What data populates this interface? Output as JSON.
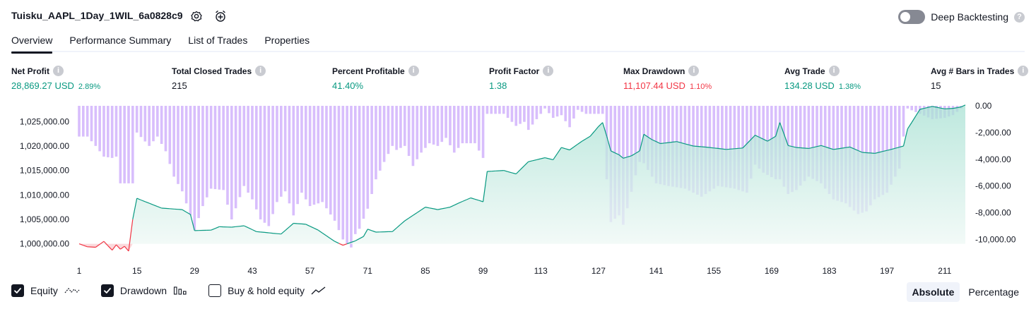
{
  "header": {
    "title": "Tuisku_AAPL_1Day_1WIL_6a0828c9",
    "settings_icon": "gear-icon",
    "alert_icon": "alarm-clock-plus-icon",
    "deep_backtesting_label": "Deep Backtesting",
    "deep_backtesting_on": false
  },
  "tabs": [
    {
      "label": "Overview",
      "active": true
    },
    {
      "label": "Performance Summary",
      "active": false
    },
    {
      "label": "List of Trades",
      "active": false
    },
    {
      "label": "Properties",
      "active": false
    }
  ],
  "metrics": [
    {
      "label": "Net Profit",
      "value": "28,869.27 USD",
      "pct": "2.89%",
      "tone": "pos"
    },
    {
      "label": "Total Closed Trades",
      "value": "215",
      "pct": "",
      "tone": "neu"
    },
    {
      "label": "Percent Profitable",
      "value": "41.40%",
      "pct": "",
      "tone": "pos"
    },
    {
      "label": "Profit Factor",
      "value": "1.38",
      "pct": "",
      "tone": "pos"
    },
    {
      "label": "Max Drawdown",
      "value": "11,107.44 USD",
      "pct": "1.10%",
      "tone": "neg"
    },
    {
      "label": "Avg Trade",
      "value": "134.28 USD",
      "pct": "1.38%",
      "tone": "pos"
    },
    {
      "label": "Avg # Bars in Trades",
      "value": "15",
      "pct": "",
      "tone": "neu"
    }
  ],
  "legend": {
    "equity_label": "Equity",
    "equity_checked": true,
    "drawdown_label": "Drawdown",
    "drawdown_checked": true,
    "buyhold_label": "Buy & hold equity",
    "buyhold_checked": false
  },
  "mode": {
    "absolute_label": "Absolute",
    "percentage_label": "Percentage",
    "active": "absolute"
  },
  "colors": {
    "equity_up": "#089981",
    "equity_down": "#f23645",
    "drawdown_bar": "#d1b3fb",
    "equity_fill_top": "#a8e1d3",
    "equity_fill_bottom": "#eef8f5",
    "loss_fill": "#fbd5d8"
  },
  "chart_data": {
    "type": "line",
    "title": "",
    "xlabel": "",
    "ylabel": "",
    "x_ticks": [
      1,
      15,
      29,
      43,
      57,
      71,
      85,
      99,
      113,
      127,
      141,
      155,
      169,
      183,
      197,
      211
    ],
    "x_range": [
      1,
      216
    ],
    "equity_axis": {
      "ticks": [
        "1,000,000.00",
        "1,005,000.00",
        "1,010,000.00",
        "1,015,000.00",
        "1,020,000.00",
        "1,025,000.00"
      ],
      "tick_values": [
        1000000,
        1005000,
        1010000,
        1015000,
        1020000,
        1025000
      ],
      "ylim": [
        998500,
        1027500
      ]
    },
    "drawdown_axis": {
      "ticks": [
        "0.00",
        "-2,000.00",
        "-4,000.00",
        "-6,000.00",
        "-8,000.00",
        "-10,000.00"
      ],
      "tick_values": [
        0,
        -2000,
        -4000,
        -6000,
        -8000,
        -10000
      ],
      "ylim": [
        -10400,
        0
      ]
    },
    "series": [
      {
        "name": "Equity",
        "anchors": [
          [
            1,
            1000000
          ],
          [
            3,
            999400
          ],
          [
            5,
            999300
          ],
          [
            7,
            1000500
          ],
          [
            9,
            998700
          ],
          [
            10,
            999800
          ],
          [
            11,
            998900
          ],
          [
            12,
            999500
          ],
          [
            13,
            998500
          ],
          [
            14,
            1005000
          ],
          [
            15,
            1009300
          ],
          [
            18,
            1008300
          ],
          [
            21,
            1007300
          ],
          [
            26,
            1007000
          ],
          [
            28,
            1006000
          ],
          [
            29,
            1002700
          ],
          [
            33,
            1002800
          ],
          [
            35,
            1003500
          ],
          [
            38,
            1003400
          ],
          [
            41,
            1003700
          ],
          [
            44,
            1002500
          ],
          [
            50,
            1002000
          ],
          [
            53,
            1004200
          ],
          [
            56,
            1004000
          ],
          [
            59,
            1002800
          ],
          [
            63,
            1000500
          ],
          [
            65,
            999700
          ],
          [
            67,
            1000300
          ],
          [
            68,
            1000600
          ],
          [
            70,
            1001500
          ],
          [
            71,
            1003000
          ],
          [
            73,
            1002400
          ],
          [
            77,
            1002500
          ],
          [
            80,
            1004700
          ],
          [
            85,
            1007500
          ],
          [
            88,
            1007000
          ],
          [
            91,
            1007500
          ],
          [
            93,
            1008300
          ],
          [
            96,
            1009400
          ],
          [
            99,
            1008600
          ],
          [
            100,
            1014800
          ],
          [
            104,
            1015000
          ],
          [
            107,
            1014300
          ],
          [
            110,
            1016800
          ],
          [
            114,
            1017600
          ],
          [
            116,
            1017200
          ],
          [
            118,
            1019700
          ],
          [
            120,
            1019200
          ],
          [
            123,
            1021000
          ],
          [
            125,
            1022000
          ],
          [
            127,
            1024000
          ],
          [
            128,
            1024800
          ],
          [
            129,
            1022000
          ],
          [
            130,
            1019000
          ],
          [
            132,
            1018200
          ],
          [
            133,
            1017500
          ],
          [
            135,
            1018000
          ],
          [
            137,
            1019000
          ],
          [
            138,
            1022400
          ],
          [
            140,
            1021300
          ],
          [
            142,
            1020500
          ],
          [
            146,
            1020900
          ],
          [
            150,
            1020000
          ],
          [
            154,
            1019700
          ],
          [
            158,
            1019300
          ],
          [
            162,
            1019600
          ],
          [
            165,
            1022200
          ],
          [
            168,
            1021000
          ],
          [
            170,
            1022000
          ],
          [
            171,
            1024800
          ],
          [
            173,
            1020100
          ],
          [
            175,
            1019700
          ],
          [
            178,
            1019500
          ],
          [
            181,
            1020100
          ],
          [
            184,
            1019300
          ],
          [
            188,
            1019800
          ],
          [
            191,
            1018700
          ],
          [
            194,
            1018500
          ],
          [
            198,
            1019300
          ],
          [
            201,
            1020000
          ],
          [
            202,
            1023500
          ],
          [
            205,
            1027500
          ],
          [
            208,
            1028100
          ],
          [
            211,
            1027600
          ],
          [
            213,
            1027700
          ],
          [
            215,
            1028000
          ],
          [
            216,
            1028400
          ]
        ]
      },
      {
        "name": "Drawdown",
        "anchors": [
          [
            1,
            -2300
          ],
          [
            3,
            -2300
          ],
          [
            5,
            -3000
          ],
          [
            7,
            -3800
          ],
          [
            9,
            -3900
          ],
          [
            10,
            -3800
          ],
          [
            11,
            -5800
          ],
          [
            14,
            -5800
          ],
          [
            15,
            -2000
          ],
          [
            18,
            -3000
          ],
          [
            20,
            -2300
          ],
          [
            22,
            -3400
          ],
          [
            24,
            -5300
          ],
          [
            26,
            -6400
          ],
          [
            28,
            -8200
          ],
          [
            29,
            -9300
          ],
          [
            31,
            -7500
          ],
          [
            33,
            -6200
          ],
          [
            36,
            -6300
          ],
          [
            38,
            -8500
          ],
          [
            41,
            -6000
          ],
          [
            43,
            -7000
          ],
          [
            45,
            -8500
          ],
          [
            47,
            -9000
          ],
          [
            49,
            -7200
          ],
          [
            51,
            -6400
          ],
          [
            53,
            -8200
          ],
          [
            55,
            -6500
          ],
          [
            57,
            -7500
          ],
          [
            60,
            -7200
          ],
          [
            63,
            -8600
          ],
          [
            65,
            -10000
          ],
          [
            67,
            -10600
          ],
          [
            68,
            -9600
          ],
          [
            69,
            -9200
          ],
          [
            71,
            -7700
          ],
          [
            73,
            -5500
          ],
          [
            75,
            -4200
          ],
          [
            77,
            -3000
          ],
          [
            78,
            -3300
          ],
          [
            80,
            -3000
          ],
          [
            82,
            -4500
          ],
          [
            84,
            -3500
          ],
          [
            86,
            -2800
          ],
          [
            88,
            -3000
          ],
          [
            90,
            -2400
          ],
          [
            92,
            -3500
          ],
          [
            94,
            -2800
          ],
          [
            97,
            -2800
          ],
          [
            99,
            -3900
          ],
          [
            100,
            -600
          ],
          [
            104,
            -600
          ],
          [
            107,
            -1500
          ],
          [
            109,
            -1200
          ],
          [
            110,
            -1800
          ],
          [
            112,
            -1000
          ],
          [
            114,
            -200
          ],
          [
            116,
            -900
          ],
          [
            118,
            -700
          ],
          [
            120,
            -1600
          ],
          [
            122,
            -300
          ],
          [
            124,
            -600
          ],
          [
            126,
            -600
          ],
          [
            128,
            -600
          ],
          [
            129,
            -5500
          ],
          [
            130,
            -8700
          ],
          [
            132,
            -8200
          ],
          [
            133,
            -8900
          ],
          [
            136,
            -5200
          ],
          [
            137,
            -4200
          ],
          [
            138,
            -4300
          ],
          [
            141,
            -5800
          ],
          [
            144,
            -6000
          ],
          [
            148,
            -6200
          ],
          [
            152,
            -6800
          ],
          [
            156,
            -6000
          ],
          [
            160,
            -6200
          ],
          [
            163,
            -6500
          ],
          [
            165,
            -4400
          ],
          [
            167,
            -5000
          ],
          [
            170,
            -5500
          ],
          [
            171,
            -5500
          ],
          [
            173,
            -6600
          ],
          [
            175,
            -6300
          ],
          [
            178,
            -5300
          ],
          [
            181,
            -5800
          ],
          [
            184,
            -7000
          ],
          [
            187,
            -7300
          ],
          [
            190,
            -8100
          ],
          [
            192,
            -7900
          ],
          [
            194,
            -7000
          ],
          [
            197,
            -6500
          ],
          [
            200,
            -4700
          ],
          [
            201,
            -2300
          ],
          [
            202,
            -200
          ],
          [
            205,
            -600
          ],
          [
            208,
            -1000
          ],
          [
            211,
            -900
          ],
          [
            213,
            -700
          ],
          [
            215,
            -200
          ],
          [
            216,
            0
          ]
        ]
      }
    ],
    "equity_baseline": 1000000,
    "legend": "bottom-left",
    "grid": false
  }
}
